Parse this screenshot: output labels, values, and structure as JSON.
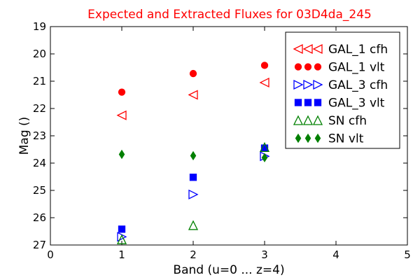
{
  "chart_data": {
    "type": "scatter",
    "title": "Expected and Extracted Fluxes for 03D4da_245",
    "xlabel": "Band (u=0 ... z=4)",
    "ylabel": "Mag ()",
    "xlim": [
      0,
      5
    ],
    "ylim": [
      27,
      19
    ],
    "y_inverted": true,
    "grid": false,
    "legend_position": "top-right",
    "x_ticks": [
      "0",
      "1",
      "2",
      "3",
      "4",
      "5"
    ],
    "y_ticks": [
      "19",
      "20",
      "21",
      "22",
      "23",
      "24",
      "25",
      "26",
      "27"
    ],
    "series": [
      {
        "name": "GAL_1 cfh",
        "marker": "triangle-left",
        "filled": false,
        "color": "#ff0000",
        "points": [
          {
            "x": 1,
            "y": 22.25
          },
          {
            "x": 2,
            "y": 21.5
          },
          {
            "x": 3,
            "y": 21.05
          }
        ]
      },
      {
        "name": "GAL_1 vlt",
        "marker": "circle",
        "filled": true,
        "color": "#ff0000",
        "points": [
          {
            "x": 1,
            "y": 21.4
          },
          {
            "x": 2,
            "y": 20.72
          },
          {
            "x": 3,
            "y": 20.42
          }
        ]
      },
      {
        "name": "GAL_3 cfh",
        "marker": "triangle-right",
        "filled": false,
        "color": "#0000ff",
        "points": [
          {
            "x": 1,
            "y": 26.7
          },
          {
            "x": 2,
            "y": 25.15
          },
          {
            "x": 3,
            "y": 23.75
          }
        ]
      },
      {
        "name": "GAL_3 vlt",
        "marker": "square",
        "filled": true,
        "color": "#0000ff",
        "points": [
          {
            "x": 1,
            "y": 26.42
          },
          {
            "x": 2,
            "y": 24.52
          },
          {
            "x": 3,
            "y": 23.45
          }
        ]
      },
      {
        "name": "SN cfh",
        "marker": "triangle-up",
        "filled": false,
        "color": "#008000",
        "points": [
          {
            "x": 1,
            "y": 26.8
          },
          {
            "x": 2,
            "y": 26.28
          },
          {
            "x": 3,
            "y": 23.42
          }
        ]
      },
      {
        "name": "SN vlt",
        "marker": "diamond",
        "filled": true,
        "color": "#008000",
        "points": [
          {
            "x": 1,
            "y": 23.68
          },
          {
            "x": 2,
            "y": 23.73
          },
          {
            "x": 3,
            "y": 23.8
          }
        ]
      }
    ]
  }
}
